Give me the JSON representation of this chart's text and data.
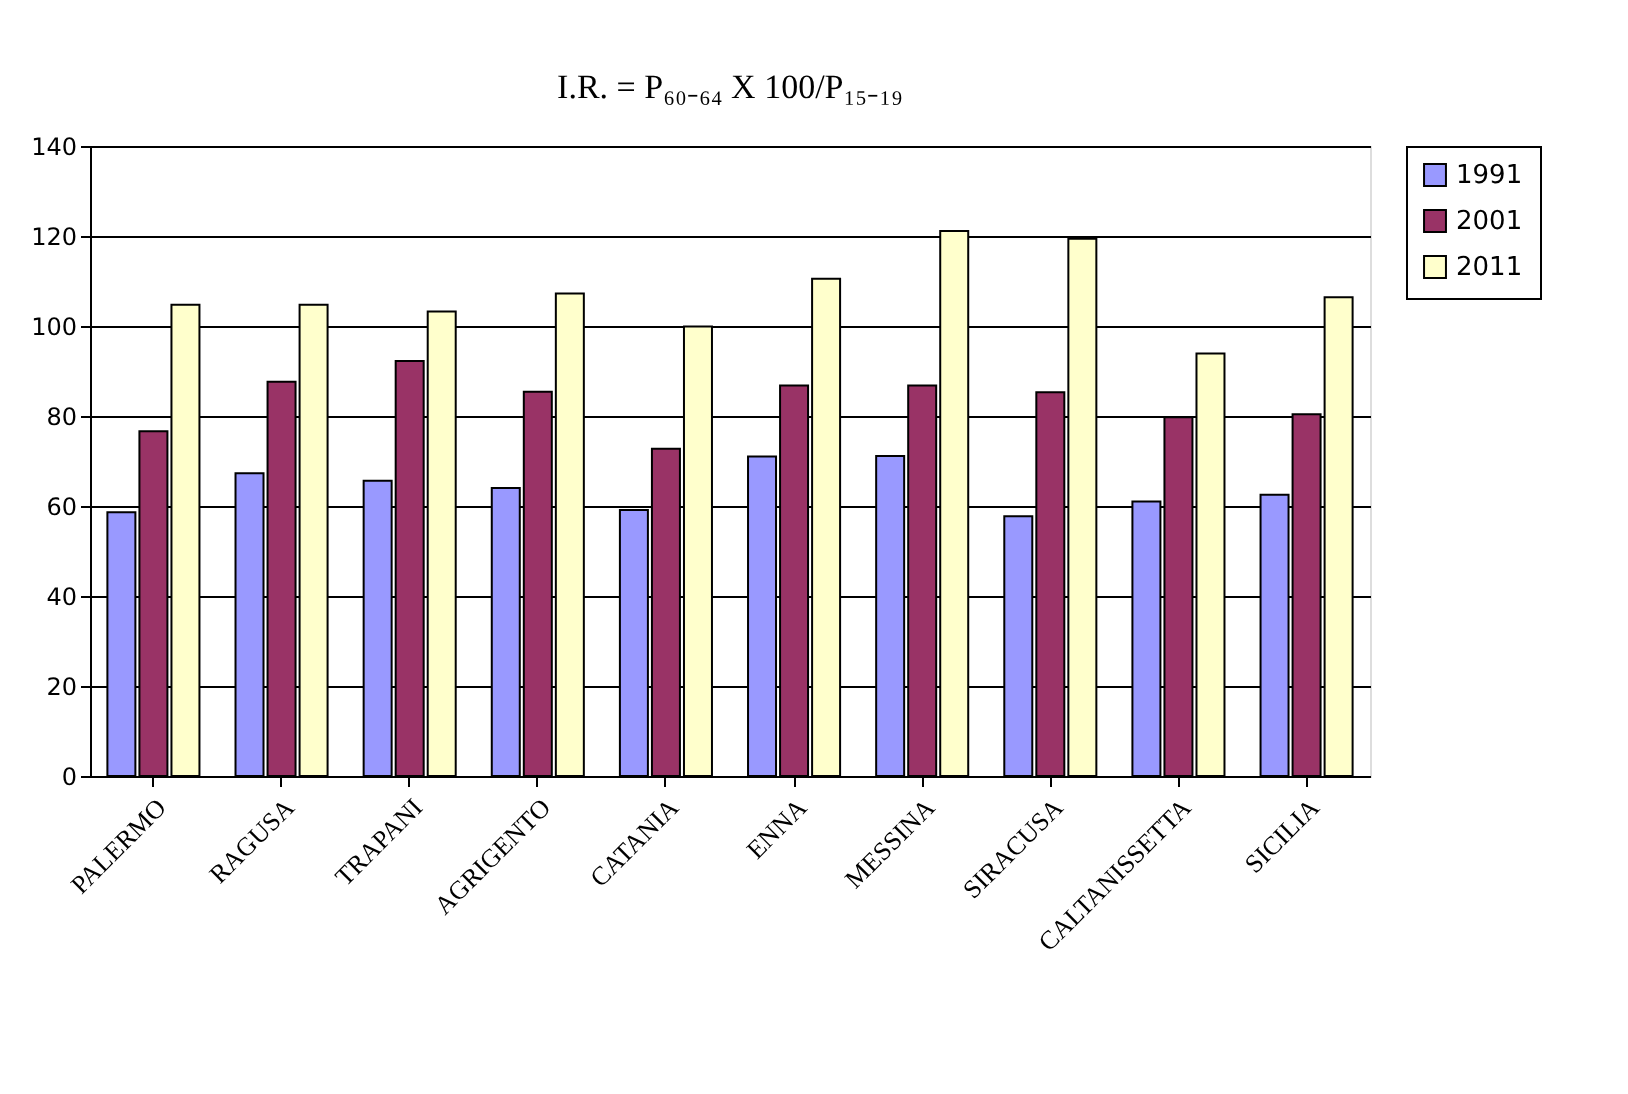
{
  "chart_data": {
    "type": "bar",
    "title": "I.R. = P₆₀₋₆₄ X 100/P₁₅₋₁₉",
    "categories": [
      "PALERMO",
      "RAGUSA",
      "TRAPANI",
      "AGRIGENTO",
      "CATANIA",
      "ENNA",
      "MESSINA",
      "SIRACUSA",
      "CALTANISSETTA",
      "SICILIA"
    ],
    "series": [
      {
        "name": "1991",
        "color": "#9999ff",
        "values": [
          58.6,
          67.3,
          65.6,
          64.0,
          59.1,
          71.0,
          71.1,
          57.7,
          61.0,
          62.5
        ]
      },
      {
        "name": "2001",
        "color": "#993366",
        "values": [
          76.6,
          87.6,
          92.2,
          85.4,
          72.7,
          86.8,
          86.8,
          85.3,
          79.7,
          80.4
        ]
      },
      {
        "name": "2011",
        "color": "#ffffcc",
        "values": [
          104.7,
          104.7,
          103.2,
          107.2,
          99.9,
          110.5,
          121.1,
          119.4,
          93.9,
          106.4
        ]
      }
    ],
    "ylim": [
      0,
      140
    ],
    "yticks": [
      0,
      20,
      40,
      60,
      80,
      100,
      120,
      140
    ],
    "grid": "y",
    "legend": "right"
  }
}
